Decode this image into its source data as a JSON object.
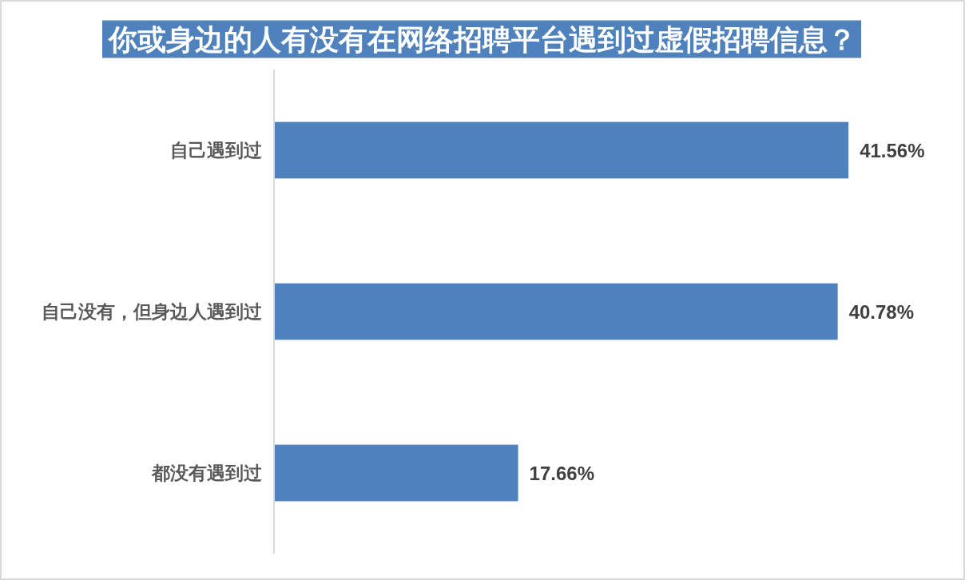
{
  "chart_data": {
    "type": "bar",
    "orientation": "horizontal",
    "title": "你或身边的人有没有在网络招聘平台遇到过虚假招聘信息？",
    "categories": [
      "自己遇到过",
      "自己没有，但身边人遇到过",
      "都没有遇到过"
    ],
    "values": [
      41.56,
      40.78,
      17.66
    ],
    "value_labels": [
      "41.56%",
      "40.78%",
      "17.66%"
    ],
    "color": "#4f81bd"
  }
}
